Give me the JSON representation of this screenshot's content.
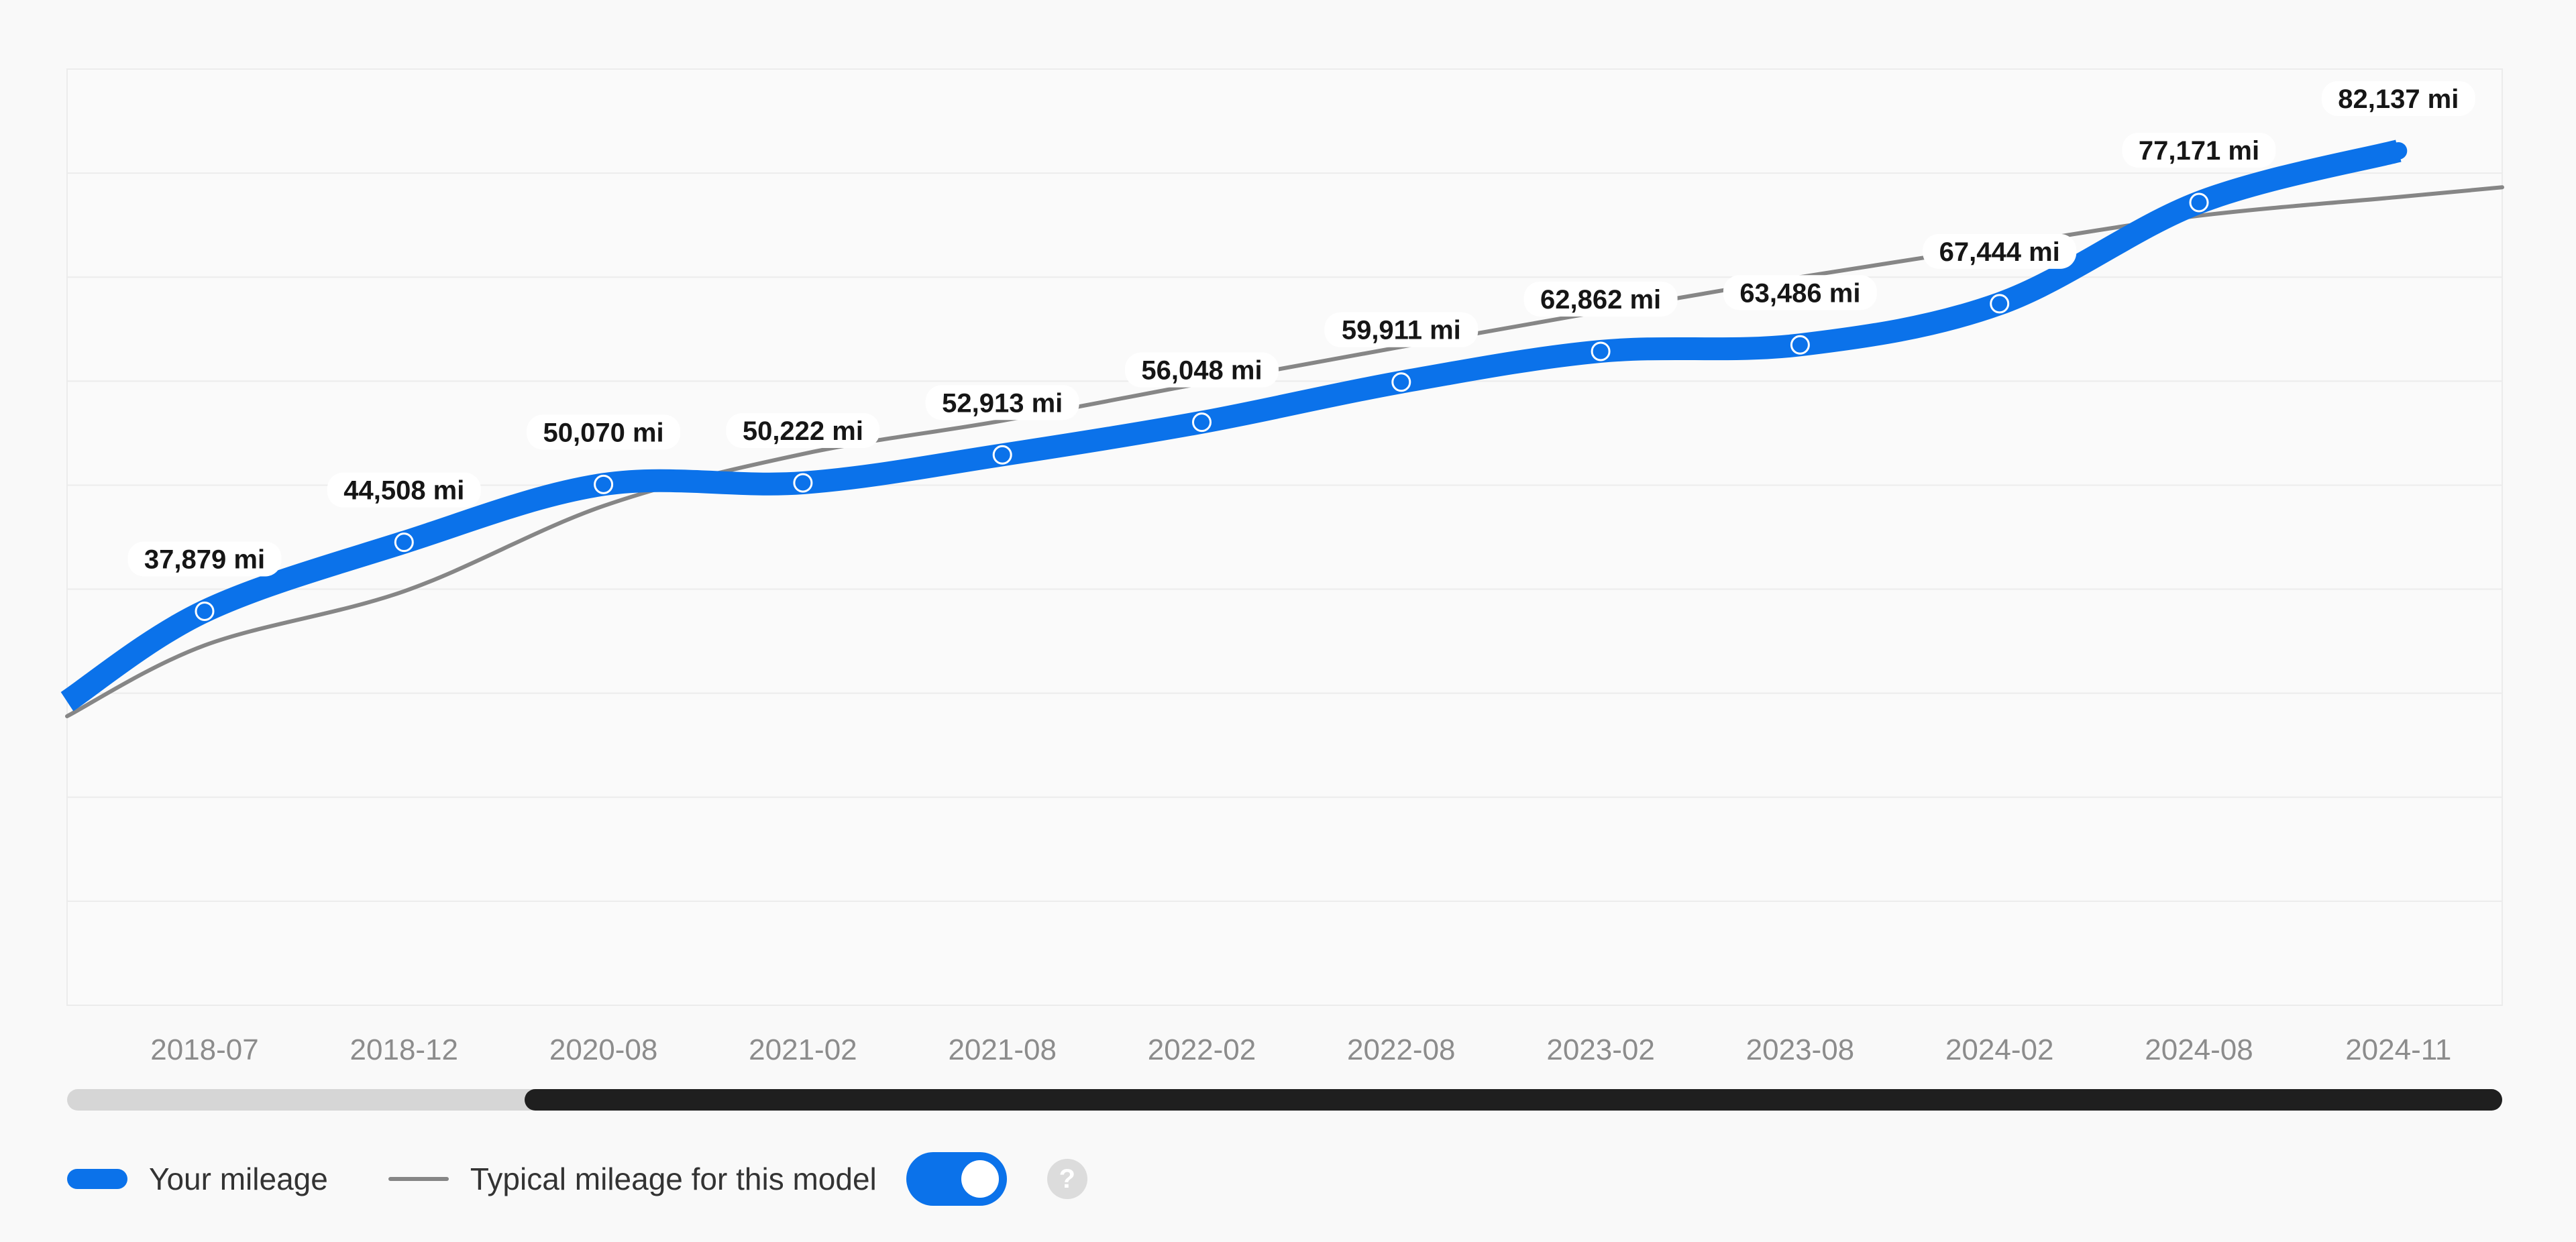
{
  "colors": {
    "your_mileage": "#0b72ea",
    "typical_mileage": "#868686",
    "scroll_thumb": "#1f1f1f",
    "toggle_on": "#0b72ea"
  },
  "legend": {
    "your_label": "Your mileage",
    "typical_label": "Typical mileage for this model",
    "typical_toggle_on": true,
    "help_symbol": "?"
  },
  "scroll_window": {
    "start_fraction": 0.188,
    "end_fraction": 1.0
  },
  "chart_data": {
    "type": "line",
    "title": "",
    "xlabel": "",
    "ylabel": "",
    "unit": "mi",
    "grid": true,
    "ylim": [
      0,
      90000
    ],
    "categories": [
      "2018-07",
      "2018-12",
      "2020-08",
      "2021-02",
      "2021-08",
      "2022-02",
      "2022-08",
      "2023-02",
      "2023-08",
      "2024-02",
      "2024-08",
      "2024-11"
    ],
    "series": [
      {
        "name": "Your mileage",
        "values": [
          37879,
          44508,
          50070,
          50222,
          52913,
          56048,
          59911,
          62862,
          63486,
          67444,
          77171,
          82137
        ],
        "data_labels": [
          "37,879 mi",
          "44,508 mi",
          "50,070 mi",
          "50,222 mi",
          "52,913 mi",
          "56,048 mi",
          "59,911 mi",
          "62,862 mi",
          "63,486 mi",
          "67,444 mi",
          "77,171 mi",
          "82,137 mi"
        ]
      },
      {
        "name": "Typical mileage for this model",
        "values": [
          34600,
          39800,
          48000,
          53000,
          56200,
          59800,
          63300,
          66700,
          70000,
          73000,
          75900,
          77700
        ]
      }
    ]
  }
}
